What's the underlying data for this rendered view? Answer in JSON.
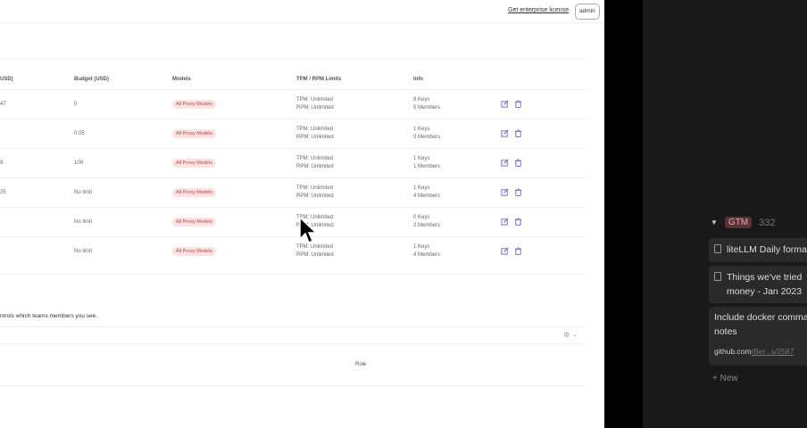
{
  "header": {
    "enterprise_link": "Get enterprise license",
    "user_button": "admin"
  },
  "table": {
    "columns": [
      "USD)",
      "Budget (USD)",
      "Models",
      "TPM / RPM Limits",
      "Info"
    ],
    "rows": [
      {
        "spend": "47",
        "budget": "0",
        "models": "All Proxy Models",
        "tpm": "TPM: Unlimited",
        "rpm": "RPM: Unlimited",
        "keys": "8 Keys",
        "members": "5 Members"
      },
      {
        "spend": "",
        "budget": "0.05",
        "models": "All Proxy Models",
        "tpm": "TPM: Unlimited",
        "rpm": "RPM: Unlimited",
        "keys": "1 Keys",
        "members": "0 Members"
      },
      {
        "spend": "9",
        "budget": "100",
        "models": "All Proxy Models",
        "tpm": "TPM: Unlimited",
        "rpm": "RPM: Unlimited",
        "keys": "1 Keys",
        "members": "1 Members"
      },
      {
        "spend": "25",
        "budget": "No limit",
        "models": "All Proxy Models",
        "tpm": "TPM: Unlimited",
        "rpm": "RPM: Unlimited",
        "keys": "1 Keys",
        "members": "4 Members"
      },
      {
        "spend": "",
        "budget": "No limit",
        "models": "All Proxy Models",
        "tpm": "TPM: Unlimited",
        "rpm": "RPM: Unlimited",
        "keys": "0 Keys",
        "members": "2 Members"
      },
      {
        "spend": "",
        "budget": "No limit",
        "models": "All Proxy Models",
        "tpm": "TPM: Unlimited",
        "rpm": "RPM: Unlimited",
        "keys": "1 Keys",
        "members": "4 Members"
      }
    ]
  },
  "members": {
    "note": "ntrols which teams members you see.",
    "role_header": "Role"
  },
  "board": {
    "group": "GTM",
    "count": "332",
    "cards": [
      {
        "title": "liteLLM Daily forma"
      },
      {
        "title": "Things we've tried",
        "title2": "money - Jan 2023"
      },
      {
        "title": "Include docker comma",
        "title2": "notes",
        "link_host": "github.com",
        "link_path": "/Ber...s/2587"
      }
    ],
    "new_label": "+ New"
  },
  "colors": {
    "accent": "#6b5fd3",
    "badge_bg": "#fde2e2",
    "badge_text": "#b44444",
    "dark_panel": "#191919"
  }
}
